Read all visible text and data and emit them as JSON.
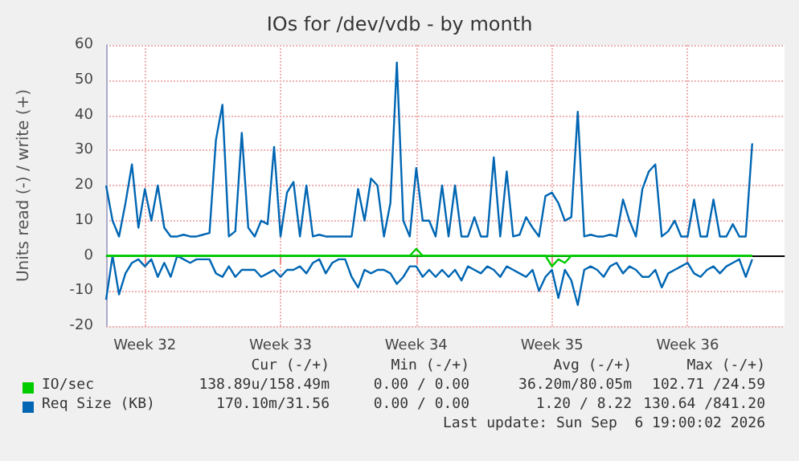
{
  "chart_data": {
    "type": "line",
    "title": "IOs for /dev/vdb - by month",
    "ylabel": "Units read (-) / write (+)",
    "categories": [
      null,
      null,
      null,
      null,
      null,
      null,
      "Week 32",
      null,
      null,
      null,
      null,
      null,
      null,
      null,
      null,
      null,
      null,
      null,
      null,
      null,
      null,
      null,
      null,
      null,
      null,
      null,
      null,
      "Week 33",
      null,
      null,
      null,
      null,
      null,
      null,
      null,
      null,
      null,
      null,
      null,
      null,
      null,
      null,
      null,
      null,
      null,
      null,
      null,
      null,
      "Week 34",
      null,
      null,
      null,
      null,
      null,
      null,
      null,
      null,
      null,
      null,
      null,
      null,
      null,
      null,
      null,
      null,
      null,
      null,
      null,
      null,
      "Week 35",
      null,
      null,
      null,
      null,
      null,
      null,
      null,
      null,
      null,
      null,
      null,
      null,
      null,
      null,
      null,
      null,
      null,
      null,
      null,
      null,
      "Week 36",
      null,
      null,
      null,
      null,
      null,
      null,
      null,
      null,
      null,
      null,
      null,
      null,
      null,
      null,
      null
    ],
    "ylim": [
      -20,
      60
    ],
    "yticks": [
      -20,
      -10,
      0,
      10,
      20,
      30,
      40,
      50,
      60
    ],
    "grid": true,
    "legend": "bottom",
    "series": [
      {
        "name": "IO/sec",
        "color": "#00cc00",
        "values": [
          0,
          0,
          0,
          0,
          0,
          0,
          0,
          0,
          0,
          0,
          0,
          0,
          0,
          0,
          0,
          0,
          0,
          0,
          0,
          0,
          0,
          0,
          0,
          0,
          0,
          0,
          0,
          0,
          0,
          0,
          0,
          0,
          0,
          0,
          0,
          0,
          0,
          0,
          0,
          0,
          0,
          0,
          0,
          0,
          0,
          0,
          0,
          0,
          2,
          0,
          0,
          0,
          0,
          0,
          0,
          0,
          0,
          0,
          0,
          0,
          0,
          0,
          0,
          0,
          0,
          0,
          0,
          0,
          0,
          0,
          0,
          0,
          0,
          0,
          0,
          0,
          0,
          0,
          0,
          0,
          0,
          0,
          0,
          0,
          0,
          0,
          0,
          0,
          0,
          0,
          0,
          0,
          0,
          0,
          0,
          0,
          0,
          0,
          0,
          0,
          0,
          null,
          null,
          null,
          null,
          null
        ]
      },
      {
        "color": "#00cc00",
        "values": [
          0,
          0,
          0,
          0,
          0,
          0,
          0,
          0,
          0,
          0,
          0,
          0,
          0,
          0,
          0,
          0,
          0,
          0,
          0,
          0,
          0,
          0,
          0,
          0,
          0,
          0,
          0,
          0,
          0,
          0,
          0,
          0,
          0,
          0,
          0,
          0,
          0,
          0,
          0,
          0,
          0,
          0,
          0,
          0,
          0,
          0,
          0,
          0,
          0,
          0,
          0,
          0,
          0,
          0,
          0,
          0,
          0,
          0,
          0,
          0,
          0,
          0,
          0,
          0,
          0,
          0,
          0,
          0,
          0,
          -3,
          -1,
          -2,
          0,
          0,
          0,
          0,
          0,
          0,
          0,
          0,
          0,
          0,
          0,
          0,
          0,
          0,
          0,
          0,
          0,
          0,
          0,
          0,
          0,
          0,
          0,
          0,
          0,
          0,
          0,
          0,
          0,
          null,
          null,
          null,
          null,
          null
        ]
      },
      {
        "name": "Req Size (KB)",
        "color": "#0066b3",
        "values": [
          20,
          10,
          5.5,
          15,
          26,
          8,
          19,
          10,
          20,
          8,
          5.5,
          5.5,
          6,
          5.5,
          5.5,
          6,
          6.5,
          33,
          43,
          5.5,
          7,
          35,
          8,
          5.5,
          10,
          9,
          31,
          5.5,
          18,
          21,
          5.5,
          20,
          5.5,
          6,
          5.5,
          5.5,
          5.5,
          5.5,
          5.5,
          19,
          10,
          22,
          20,
          5.5,
          15,
          55,
          10,
          5.5,
          25,
          10,
          10,
          5.5,
          20,
          5.5,
          20,
          5.5,
          5.5,
          11,
          5.5,
          5.5,
          28,
          5.5,
          24,
          5.5,
          6,
          11,
          8,
          5.5,
          17,
          18,
          15,
          10,
          11,
          41,
          5.5,
          6,
          5.5,
          5.5,
          6,
          5.5,
          16,
          10,
          5.5,
          19,
          24,
          26,
          5.5,
          7,
          10,
          5.5,
          5.5,
          16,
          5.5,
          5.5,
          16,
          5.5,
          5.5,
          9,
          5.5,
          5.5,
          32,
          null,
          null,
          null,
          null,
          null
        ]
      },
      {
        "color": "#0066b3",
        "values": [
          -12.5,
          0,
          -11,
          -5,
          -2,
          -1,
          -3,
          -1,
          -6,
          -2,
          -6,
          0,
          -1,
          -2,
          -1,
          -1,
          -1,
          -5,
          -6,
          -3,
          -6,
          -4,
          -4,
          -4,
          -6,
          -5,
          -4,
          -6,
          -4,
          -4,
          -3,
          -5,
          -2,
          -1,
          -5,
          -2,
          -1,
          -1,
          -6,
          -9,
          -4,
          -5,
          -4,
          -4,
          -5,
          -8,
          -6,
          -3,
          -3,
          -6,
          -4,
          -6,
          -4,
          -6,
          -4,
          -7,
          -3,
          -4,
          -5,
          -3,
          -4,
          -6,
          -3,
          -4,
          -5,
          -6,
          -4,
          -10,
          -6,
          -4,
          -12,
          -4,
          -7,
          -14,
          -4,
          -3,
          -4,
          -6,
          -3,
          -2,
          -5,
          -3,
          -4,
          -6,
          -6,
          -4,
          -9,
          -5,
          -4,
          -3,
          -2,
          -5,
          -6,
          -4,
          -3,
          -5,
          -3,
          -2,
          -1,
          -6,
          -1,
          null,
          null,
          null,
          null,
          null
        ]
      }
    ],
    "annotations": [
      "Cur (-/+)",
      "Min (-/+)",
      "Avg (-/+)",
      "Max (-/+)",
      "138.89u/158.49m",
      "0.00 / 0.00",
      "36.20m/80.05m",
      "102.71 /24.59",
      "170.10m/31.56",
      "0.00 / 0.00",
      "1.20 / 8.22",
      "130.64 /841.20",
      "Last update: Sun Sep  6 19:00:02 2026"
    ]
  }
}
